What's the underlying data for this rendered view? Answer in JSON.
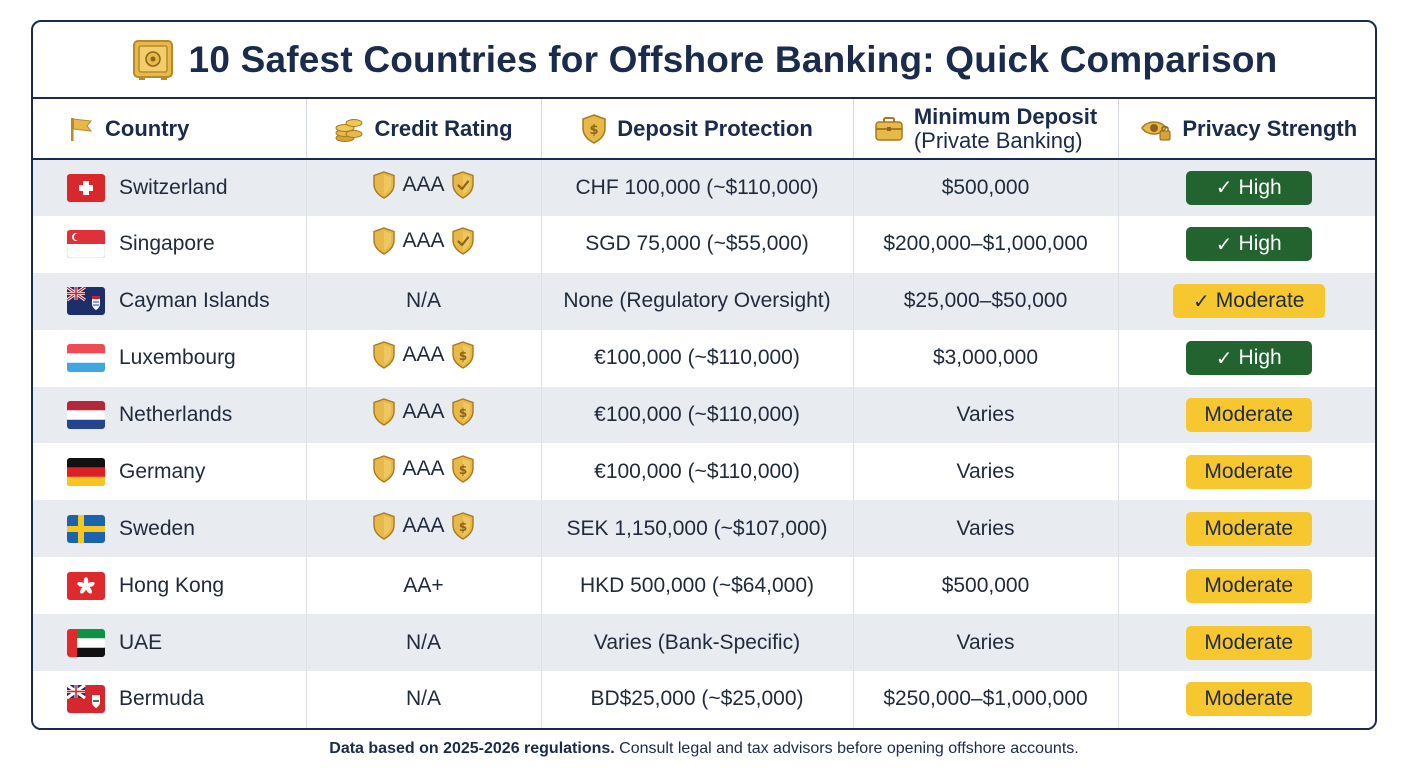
{
  "title": "10 Safest Countries for Offshore Banking: Quick Comparison",
  "headers": {
    "country": "Country",
    "credit_rating": "Credit Rating",
    "deposit_protection": "Deposit Protection",
    "min_deposit_line1": "Minimum Deposit",
    "min_deposit_line2": "(Private Banking)",
    "privacy": "Privacy Strength"
  },
  "rows": [
    {
      "country": "Switzerland",
      "flag": "switzerland-flag",
      "rating": "AAA",
      "rating_icons": true,
      "protection": "CHF 100,000 (~$110,000)",
      "min_deposit": "$500,000",
      "privacy": "High",
      "privacy_check": true
    },
    {
      "country": "Singapore",
      "flag": "singapore-flag",
      "rating": "AAA",
      "rating_icons": true,
      "protection": "SGD 75,000 (~$55,000)",
      "min_deposit": "$200,000–$1,000,000",
      "privacy": "High",
      "privacy_check": true
    },
    {
      "country": "Cayman Islands",
      "flag": "cayman-islands-flag",
      "rating": "N/A",
      "rating_icons": false,
      "protection": "None (Regulatory Oversight)",
      "min_deposit": "$25,000–$50,000",
      "privacy": "Moderate",
      "privacy_check": true
    },
    {
      "country": "Luxembourg",
      "flag": "luxembourg-flag",
      "rating": "AAA",
      "rating_icons": true,
      "protection": "€100,000 (~$110,000)",
      "min_deposit": "$3,000,000",
      "privacy": "High",
      "privacy_check": true
    },
    {
      "country": "Netherlands",
      "flag": "netherlands-flag",
      "rating": "AAA",
      "rating_icons": true,
      "protection": "€100,000 (~$110,000)",
      "min_deposit": "Varies",
      "privacy": "Moderate",
      "privacy_check": false
    },
    {
      "country": "Germany",
      "flag": "germany-flag",
      "rating": "AAA",
      "rating_icons": true,
      "protection": "€100,000 (~$110,000)",
      "min_deposit": "Varies",
      "privacy": "Moderate",
      "privacy_check": false
    },
    {
      "country": "Sweden",
      "flag": "sweden-flag",
      "rating": "AAA",
      "rating_icons": true,
      "protection": "SEK 1,150,000 (~$107,000)",
      "min_deposit": "Varies",
      "privacy": "Moderate",
      "privacy_check": false
    },
    {
      "country": "Hong Kong",
      "flag": "hong-kong-flag",
      "rating": "AA+",
      "rating_icons": false,
      "protection": "HKD 500,000 (~$64,000)",
      "min_deposit": "$500,000",
      "privacy": "Moderate",
      "privacy_check": false
    },
    {
      "country": "UAE",
      "flag": "uae-flag",
      "rating": "N/A",
      "rating_icons": false,
      "protection": "Varies (Bank-Specific)",
      "min_deposit": "Varies",
      "privacy": "Moderate",
      "privacy_check": false
    },
    {
      "country": "Bermuda",
      "flag": "bermuda-flag",
      "rating": "N/A",
      "rating_icons": false,
      "protection": "BD$25,000 (~$25,000)",
      "min_deposit": "$250,000–$1,000,000",
      "privacy": "Moderate",
      "privacy_check": false
    }
  ],
  "footnote": {
    "bold": "Data based on 2025-2026 regulations.",
    "rest": " Consult legal and tax advisors before opening offshore accounts."
  },
  "colors": {
    "navy": "#1b2b4b",
    "high_pill": "#236330",
    "moderate_pill": "#f6c72e",
    "stripe": "#e8ebf0",
    "gold": "#e2b13c"
  }
}
